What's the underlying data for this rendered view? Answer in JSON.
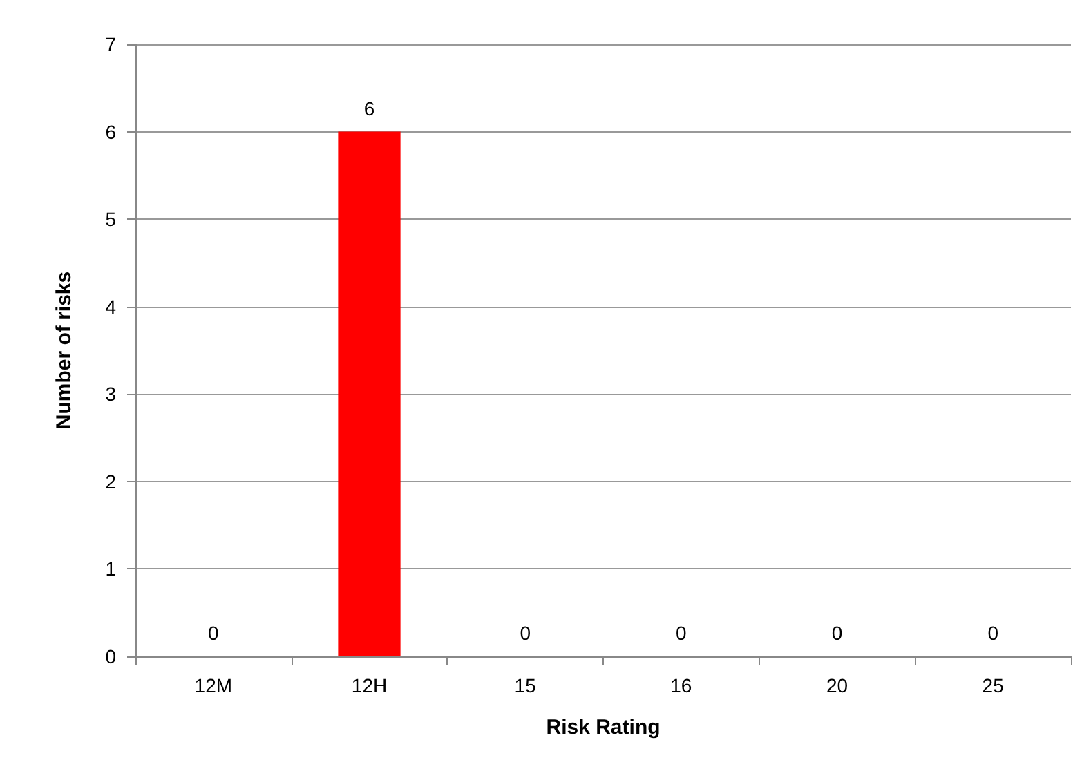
{
  "chart_data": {
    "type": "bar",
    "xlabel": "Risk Rating",
    "ylabel": "Number of risks",
    "categories": [
      "12M",
      "12H",
      "15",
      "16",
      "20",
      "25"
    ],
    "values": [
      0,
      6,
      0,
      0,
      0,
      0
    ],
    "color": "#ff0000",
    "ylim": [
      0,
      7
    ],
    "yticks": [
      0,
      1,
      2,
      3,
      4,
      5,
      6,
      7
    ],
    "grid": "y",
    "data_labels": true
  }
}
